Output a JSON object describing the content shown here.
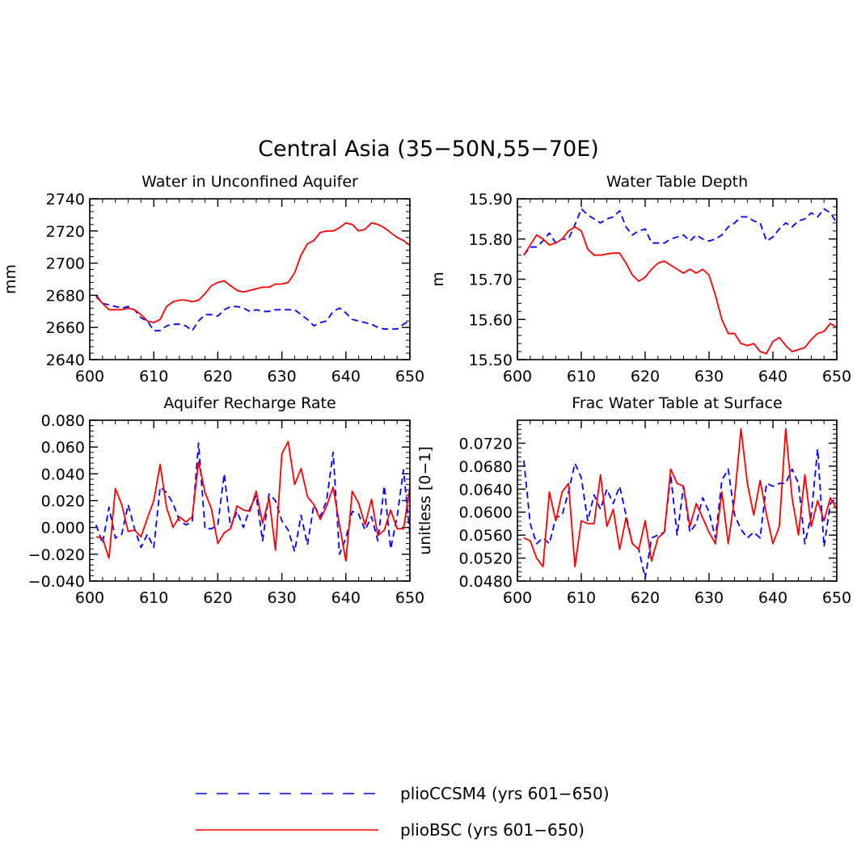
{
  "figure_title": "Central Asia (35−50N,55−70E)",
  "legend": {
    "entries": [
      {
        "label": "plioCCSM4 (yrs 601−650)",
        "color": "#0000ff",
        "dash": "dashed"
      },
      {
        "label": "plioBSC (yrs 601−650)",
        "color": "#ff0000",
        "dash": "solid"
      }
    ]
  },
  "chart_data": [
    {
      "type": "line",
      "title": "Water in Unconfined Aquifer",
      "xlabel": "",
      "ylabel": "mm",
      "xlim": [
        600,
        650
      ],
      "ylim": [
        2640,
        2740
      ],
      "xticks": [
        600,
        610,
        620,
        630,
        640,
        650
      ],
      "xtick_labels": [
        "600",
        "610",
        "620",
        "630",
        "640",
        "650"
      ],
      "yticks": [
        2640,
        2660,
        2680,
        2700,
        2720,
        2740
      ],
      "ytick_labels": [
        "2640",
        "2660",
        "2680",
        "2700",
        "2720",
        "2740"
      ],
      "x": [
        601,
        602,
        603,
        604,
        605,
        606,
        607,
        608,
        609,
        610,
        611,
        612,
        613,
        614,
        615,
        616,
        617,
        618,
        619,
        620,
        621,
        622,
        623,
        624,
        625,
        626,
        627,
        628,
        629,
        630,
        631,
        632,
        633,
        634,
        635,
        636,
        637,
        638,
        639,
        640,
        641,
        642,
        643,
        644,
        645,
        646,
        647,
        648,
        649,
        650
      ],
      "series": [
        {
          "name": "plioCCSM4 (yrs 601−650)",
          "color": "#0000ff",
          "dash": "dashed",
          "values": [
            2680,
            2675,
            2674,
            2673,
            2672,
            2673,
            2671,
            2666,
            2664,
            2658,
            2658,
            2661,
            2662,
            2662,
            2661,
            2658,
            2664,
            2668,
            2668,
            2667,
            2671,
            2673,
            2673,
            2672,
            2670,
            2671,
            2670,
            2670,
            2671,
            2671,
            2671,
            2671,
            2668,
            2665,
            2661,
            2663,
            2664,
            2670,
            2672,
            2669,
            2665,
            2664,
            2663,
            2662,
            2660,
            2659,
            2659,
            2659,
            2662,
            2664
          ]
        },
        {
          "name": "plioBSC (yrs 601−650)",
          "color": "#ff0000",
          "dash": "solid",
          "values": [
            2679,
            2675,
            2671,
            2671,
            2671,
            2672,
            2671,
            2668,
            2664,
            2663,
            2665,
            2673,
            2676,
            2677,
            2677,
            2676,
            2677,
            2681,
            2686,
            2688,
            2689,
            2686,
            2683,
            2682,
            2683,
            2684,
            2685,
            2685,
            2687,
            2687,
            2688,
            2694,
            2705,
            2712,
            2714,
            2719,
            2720,
            2720,
            2722,
            2725,
            2724,
            2720,
            2721,
            2725,
            2724,
            2722,
            2719,
            2716,
            2714,
            2711
          ]
        }
      ]
    },
    {
      "type": "line",
      "title": "Water Table Depth",
      "xlabel": "",
      "ylabel": "m",
      "xlim": [
        600,
        650
      ],
      "ylim": [
        15.5,
        15.9
      ],
      "xticks": [
        600,
        610,
        620,
        630,
        640,
        650
      ],
      "xtick_labels": [
        "600",
        "610",
        "620",
        "630",
        "640",
        "650"
      ],
      "yticks": [
        15.5,
        15.6,
        15.7,
        15.8,
        15.9
      ],
      "ytick_labels": [
        "15.50",
        "15.60",
        "15.70",
        "15.80",
        "15.90"
      ],
      "x": [
        601,
        602,
        603,
        604,
        605,
        606,
        607,
        608,
        609,
        610,
        611,
        612,
        613,
        614,
        615,
        616,
        617,
        618,
        619,
        620,
        621,
        622,
        623,
        624,
        625,
        626,
        627,
        628,
        629,
        630,
        631,
        632,
        633,
        634,
        635,
        636,
        637,
        638,
        639,
        640,
        641,
        642,
        643,
        644,
        645,
        646,
        647,
        648,
        649,
        650
      ],
      "series": [
        {
          "name": "plioCCSM4 (yrs 601−650)",
          "color": "#0000ff",
          "dash": "dashed",
          "values": [
            15.76,
            15.78,
            15.78,
            15.795,
            15.815,
            15.79,
            15.8,
            15.8,
            15.835,
            15.875,
            15.86,
            15.85,
            15.84,
            15.85,
            15.855,
            15.87,
            15.83,
            15.81,
            15.82,
            15.825,
            15.79,
            15.79,
            15.79,
            15.8,
            15.805,
            15.81,
            15.795,
            15.81,
            15.8,
            15.795,
            15.8,
            15.81,
            15.83,
            15.84,
            15.855,
            15.855,
            15.845,
            15.84,
            15.795,
            15.805,
            15.825,
            15.84,
            15.83,
            15.845,
            15.85,
            15.865,
            15.855,
            15.875,
            15.865,
            15.84
          ]
        },
        {
          "name": "plioBSC (yrs 601−650)",
          "color": "#ff0000",
          "dash": "solid",
          "values": [
            15.76,
            15.785,
            15.81,
            15.8,
            15.785,
            15.79,
            15.8,
            15.82,
            15.83,
            15.82,
            15.775,
            15.76,
            15.76,
            15.763,
            15.765,
            15.765,
            15.74,
            15.71,
            15.695,
            15.705,
            15.725,
            15.74,
            15.745,
            15.735,
            15.725,
            15.715,
            15.725,
            15.715,
            15.725,
            15.71,
            15.66,
            15.6,
            15.565,
            15.565,
            15.54,
            15.535,
            15.54,
            15.52,
            15.515,
            15.545,
            15.555,
            15.535,
            15.52,
            15.525,
            15.53,
            15.55,
            15.565,
            15.57,
            15.59,
            15.58
          ]
        }
      ]
    },
    {
      "type": "line",
      "title": "Aquifer Recharge Rate",
      "xlabel": "",
      "ylabel": "",
      "xlim": [
        600,
        650
      ],
      "ylim": [
        -0.04,
        0.08
      ],
      "xticks": [
        600,
        610,
        620,
        630,
        640,
        650
      ],
      "xtick_labels": [
        "600",
        "610",
        "620",
        "630",
        "640",
        "650"
      ],
      "yticks": [
        -0.04,
        -0.02,
        0,
        0.02,
        0.04,
        0.06,
        0.08
      ],
      "ytick_labels": [
        "−0.040",
        "−0.020",
        "0.000",
        "0.020",
        "0.040",
        "0.060",
        "0.080"
      ],
      "x": [
        601,
        602,
        603,
        604,
        605,
        606,
        607,
        608,
        609,
        610,
        611,
        612,
        613,
        614,
        615,
        616,
        617,
        618,
        619,
        620,
        621,
        622,
        623,
        624,
        625,
        626,
        627,
        628,
        629,
        630,
        631,
        632,
        633,
        634,
        635,
        636,
        637,
        638,
        639,
        640,
        641,
        642,
        643,
        644,
        645,
        646,
        647,
        648,
        649,
        650
      ],
      "series": [
        {
          "name": "plioCCSM4 (yrs 601−650)",
          "color": "#0000ff",
          "dash": "dashed",
          "values": [
            0.002,
            -0.012,
            0.015,
            -0.008,
            -0.005,
            0.017,
            -0.001,
            -0.015,
            -0.005,
            -0.015,
            0.03,
            0.026,
            0.018,
            0.005,
            0.002,
            0.004,
            0.063,
            -0.001,
            -0.001,
            0.002,
            0.04,
            0.0,
            0.012,
            0.0,
            0.014,
            0.024,
            -0.01,
            0.025,
            0.02,
            0.005,
            -0.002,
            -0.018,
            0.009,
            -0.013,
            0.017,
            0.008,
            0.02,
            0.056,
            -0.02,
            -0.008,
            0.012,
            0.01,
            -0.002,
            0.008,
            -0.01,
            0.031,
            -0.016,
            0.008,
            0.043,
            -0.005
          ]
        },
        {
          "name": "plioBSC (yrs 601−650)",
          "color": "#ff0000",
          "dash": "solid",
          "values": [
            -0.007,
            -0.008,
            -0.023,
            0.029,
            0.017,
            -0.003,
            -0.002,
            -0.007,
            0.007,
            0.02,
            0.047,
            0.015,
            0.0,
            0.008,
            0.004,
            0.008,
            0.049,
            0.026,
            0.014,
            -0.012,
            -0.004,
            -0.001,
            0.016,
            0.013,
            0.012,
            0.027,
            0.003,
            0.022,
            -0.017,
            0.055,
            0.064,
            0.032,
            0.044,
            0.023,
            0.017,
            0.006,
            0.016,
            0.03,
            0.002,
            -0.025,
            0.027,
            0.018,
            0.002,
            0.021,
            -0.006,
            -0.002,
            0.013,
            -0.001,
            -0.001,
            0.03
          ]
        }
      ]
    },
    {
      "type": "line",
      "title": "Frac Water Table at Surface",
      "xlabel": "",
      "ylabel": "unitless [0−1]",
      "xlim": [
        600,
        650
      ],
      "ylim": [
        0.048,
        0.076
      ],
      "xticks": [
        600,
        610,
        620,
        630,
        640,
        650
      ],
      "xtick_labels": [
        "600",
        "610",
        "620",
        "630",
        "640",
        "650"
      ],
      "yticks": [
        0.048,
        0.052,
        0.056,
        0.06,
        0.064,
        0.068,
        0.072
      ],
      "ytick_labels": [
        "0.0480",
        "0.0520",
        "0.0560",
        "0.0600",
        "0.0640",
        "0.0680",
        "0.0720"
      ],
      "x": [
        601,
        602,
        603,
        604,
        605,
        606,
        607,
        608,
        609,
        610,
        611,
        612,
        613,
        614,
        615,
        616,
        617,
        618,
        619,
        620,
        621,
        622,
        623,
        624,
        625,
        626,
        627,
        628,
        629,
        630,
        631,
        632,
        633,
        634,
        635,
        636,
        637,
        638,
        639,
        640,
        641,
        642,
        643,
        644,
        645,
        646,
        647,
        648,
        649,
        650
      ],
      "series": [
        {
          "name": "plioCCSM4 (yrs 601−650)",
          "color": "#0000ff",
          "dash": "dashed",
          "values": [
            0.069,
            0.058,
            0.0545,
            0.0555,
            0.0545,
            0.059,
            0.0595,
            0.0635,
            0.0685,
            0.066,
            0.0585,
            0.063,
            0.0605,
            0.064,
            0.0615,
            0.0645,
            0.0595,
            0.0545,
            0.0535,
            0.0485,
            0.0555,
            0.056,
            0.0565,
            0.0665,
            0.056,
            0.0645,
            0.0565,
            0.058,
            0.0625,
            0.06,
            0.0555,
            0.0655,
            0.0675,
            0.0595,
            0.057,
            0.0555,
            0.0565,
            0.0555,
            0.065,
            0.0645,
            0.065,
            0.065,
            0.0675,
            0.065,
            0.0545,
            0.0595,
            0.071,
            0.054,
            0.0615,
            0.0625
          ]
        },
        {
          "name": "plioBSC (yrs 601−650)",
          "color": "#ff0000",
          "dash": "solid",
          "values": [
            0.0555,
            0.055,
            0.052,
            0.0505,
            0.0635,
            0.0585,
            0.0635,
            0.065,
            0.0505,
            0.0585,
            0.058,
            0.058,
            0.0665,
            0.0575,
            0.0605,
            0.0535,
            0.059,
            0.0545,
            0.0535,
            0.0585,
            0.0515,
            0.0555,
            0.0565,
            0.0675,
            0.065,
            0.0645,
            0.0575,
            0.0615,
            0.059,
            0.0565,
            0.0545,
            0.0635,
            0.0545,
            0.0625,
            0.0745,
            0.065,
            0.0595,
            0.0655,
            0.0595,
            0.0545,
            0.0575,
            0.0745,
            0.0625,
            0.056,
            0.0665,
            0.0575,
            0.062,
            0.0585,
            0.0625,
            0.0605
          ]
        }
      ]
    }
  ]
}
